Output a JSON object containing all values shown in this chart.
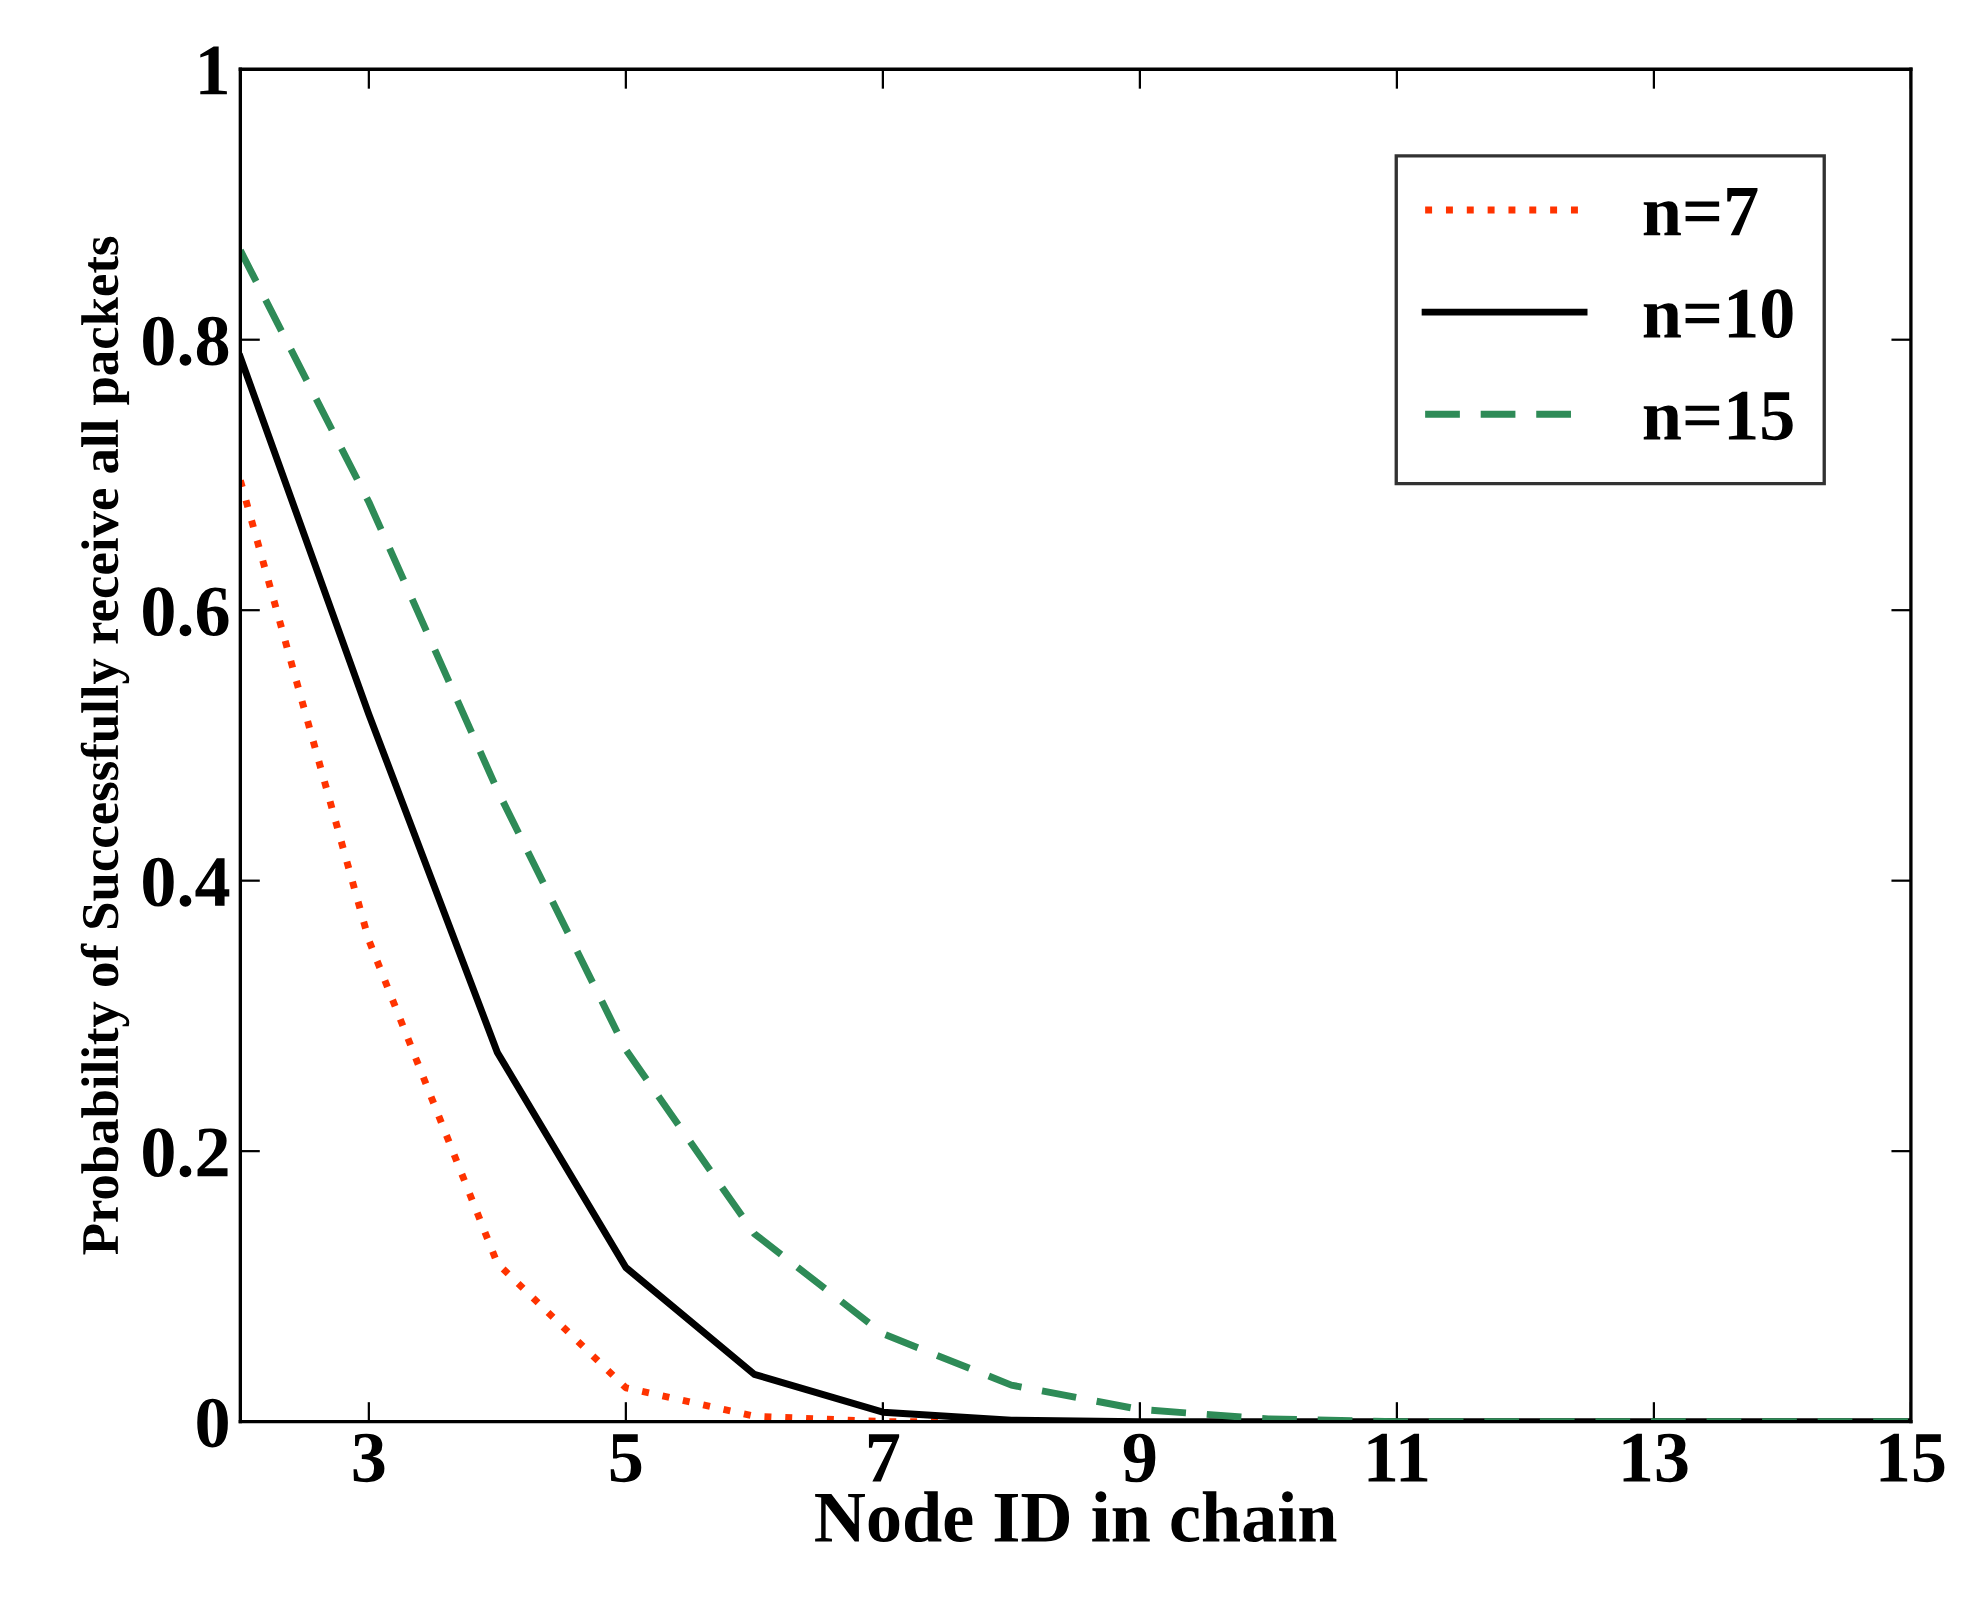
{
  "chart_data": {
    "type": "line",
    "xlabel": "Node ID in chain",
    "ylabel": "Probability of Successfully receive all packets",
    "x": [
      2,
      3,
      4,
      5,
      6,
      7,
      8,
      9,
      10,
      11,
      12,
      13,
      14,
      15
    ],
    "series": [
      {
        "name": "n=7",
        "color": "#ff3300",
        "line_style": "dotted",
        "values": [
          0.696,
          0.356,
          0.117,
          0.025,
          0.004,
          0.0,
          0.0,
          0.0,
          null,
          null,
          null,
          null,
          null,
          null
        ]
      },
      {
        "name": "n=10",
        "color": "#000000",
        "line_style": "solid",
        "values": [
          0.787,
          0.523,
          0.273,
          0.114,
          0.035,
          0.007,
          0.001,
          0.0,
          0.0,
          0.0,
          0.0,
          0.0,
          0.0,
          0.0
        ]
      },
      {
        "name": "n=15",
        "color": "#2e8b57",
        "line_style": "dashed",
        "values": [
          0.866,
          0.68,
          0.467,
          0.275,
          0.139,
          0.065,
          0.027,
          0.009,
          0.002,
          0.0,
          0.0,
          0.0,
          0.0,
          0.0
        ]
      }
    ],
    "xlim": [
      2,
      15
    ],
    "xticks": [
      3,
      5,
      7,
      9,
      11,
      13,
      15
    ],
    "ylim": [
      0,
      1
    ],
    "yticks": [
      0,
      0.2,
      0.4,
      0.6,
      0.8,
      1
    ],
    "grid": false,
    "legend": "top right",
    "marker": "none"
  }
}
